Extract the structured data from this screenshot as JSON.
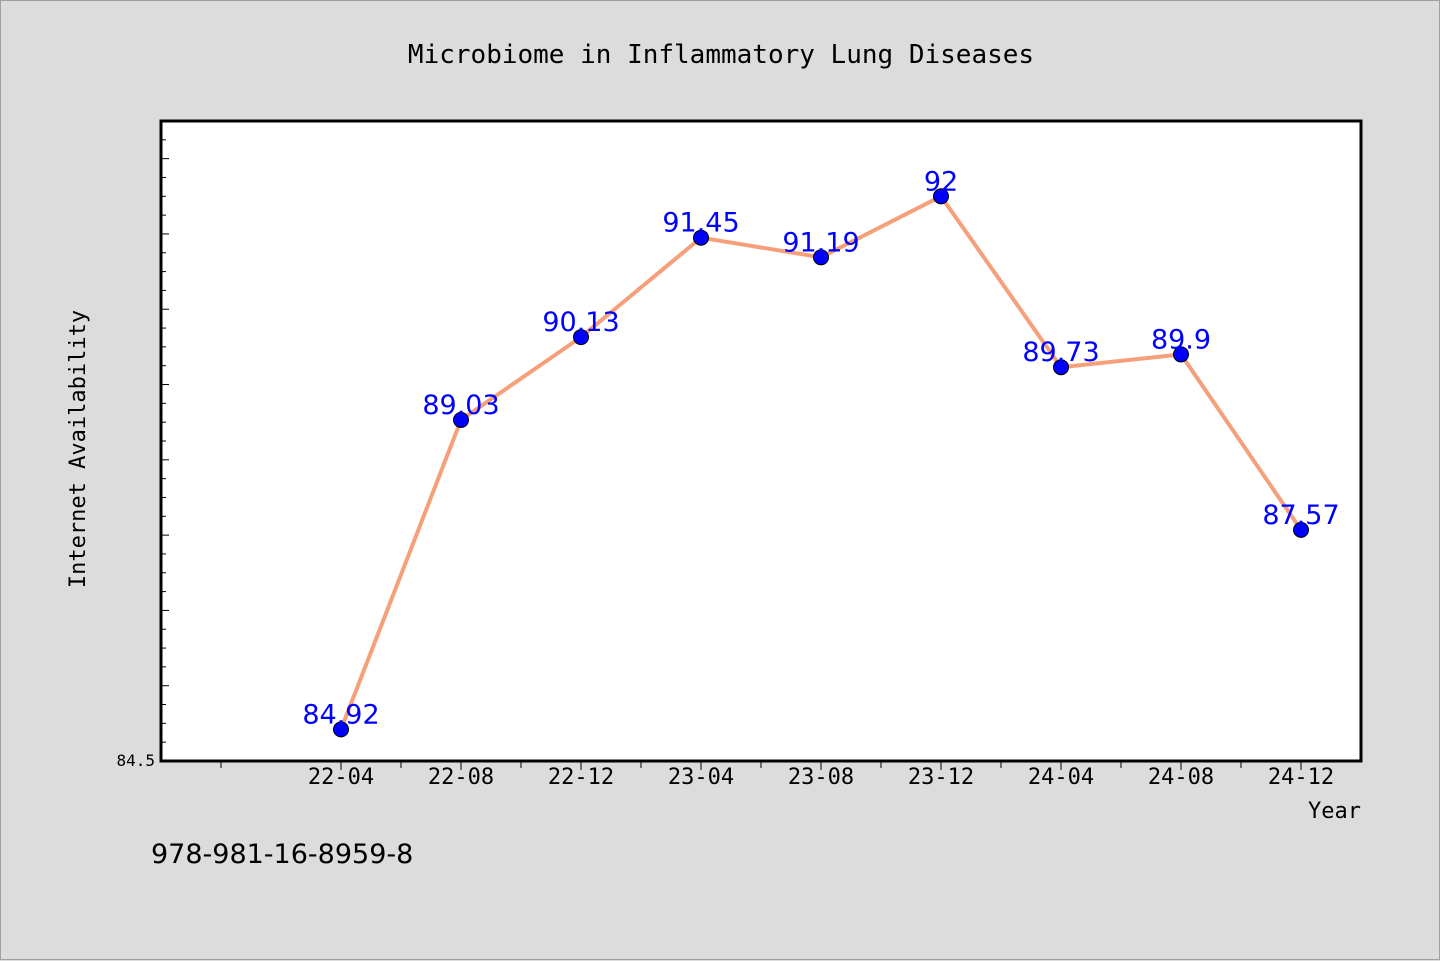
{
  "chart_data": {
    "type": "line",
    "title": "Microbiome in Inflammatory Lung Diseases",
    "xlabel": "Year",
    "ylabel": "Internet Availability",
    "categories": [
      "22-04",
      "22-08",
      "22-12",
      "23-04",
      "23-08",
      "23-12",
      "24-04",
      "24-08",
      "24-12"
    ],
    "series": [
      {
        "values": [
          84.92,
          89.03,
          90.13,
          91.45,
          91.19,
          92,
          89.73,
          89.9,
          87.57
        ],
        "labels": [
          "84.92",
          "89.03",
          "90.13",
          "91.45",
          "91.19",
          "92",
          "89.73",
          "89.9",
          "87.57"
        ],
        "line_color": "#f5a07a",
        "marker_color": "#0000ff"
      }
    ],
    "ylim": [
      84.5,
      93.0
    ],
    "y_tick_labels": [
      "84.5"
    ],
    "grid": false,
    "legend": "none"
  },
  "footer": {
    "isbn": "978-981-16-8959-8"
  },
  "colors": {
    "background": "#dcdcdc",
    "plot_background": "#ffffff",
    "line": "#f5a07a",
    "marker": "#0000ff",
    "data_label": "#0000ff"
  }
}
